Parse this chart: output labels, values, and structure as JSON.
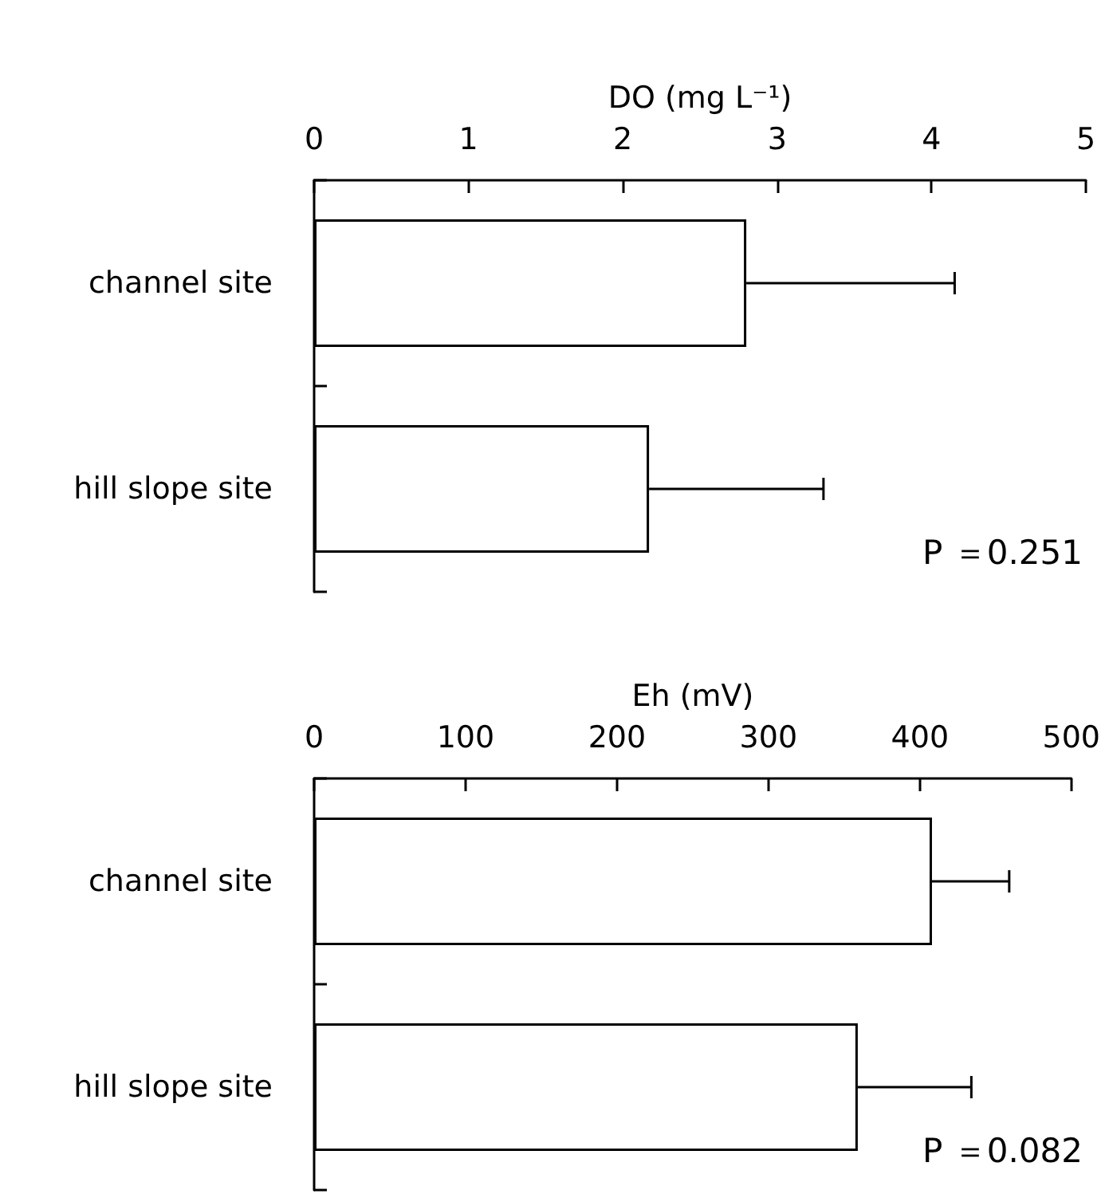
{
  "chart_data": [
    {
      "type": "bar",
      "orientation": "horizontal",
      "xlabel": "DO (mg L⁻¹)",
      "categories": [
        "channel site",
        "hill slope site"
      ],
      "values": [
        2.8,
        2.17
      ],
      "errors": [
        1.35,
        1.13
      ],
      "color": "#ffffff",
      "xlim": [
        0,
        5
      ],
      "xticks": [
        0,
        1,
        2,
        3,
        4,
        5
      ],
      "grid": false,
      "annotations": [
        "P ＝0.251"
      ]
    },
    {
      "type": "bar",
      "orientation": "horizontal",
      "xlabel": "Eh (mV)",
      "categories": [
        "channel site",
        "hill slope site"
      ],
      "values": [
        408,
        359
      ],
      "errors": [
        51,
        75
      ],
      "color": "#ffffff",
      "xlim": [
        0,
        500
      ],
      "xticks": [
        0,
        100,
        200,
        300,
        400,
        500
      ],
      "grid": false,
      "annotations": [
        "P ＝0.082"
      ]
    }
  ]
}
